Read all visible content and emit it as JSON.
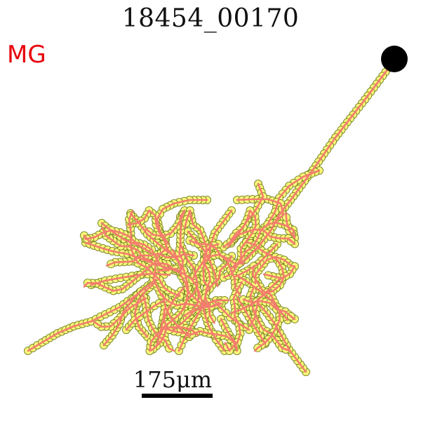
{
  "title": "18454_00170",
  "label": "MG",
  "scale_bar": {
    "text": "175μm",
    "length_um": 175
  },
  "colors": {
    "title": "#111111",
    "label": "#e8000b",
    "branch": "#f47c6e",
    "node_fill": "#faf87a",
    "node_stroke": "#7e8a2a",
    "soma": "#000000",
    "scale_bar": "#000000"
  }
}
